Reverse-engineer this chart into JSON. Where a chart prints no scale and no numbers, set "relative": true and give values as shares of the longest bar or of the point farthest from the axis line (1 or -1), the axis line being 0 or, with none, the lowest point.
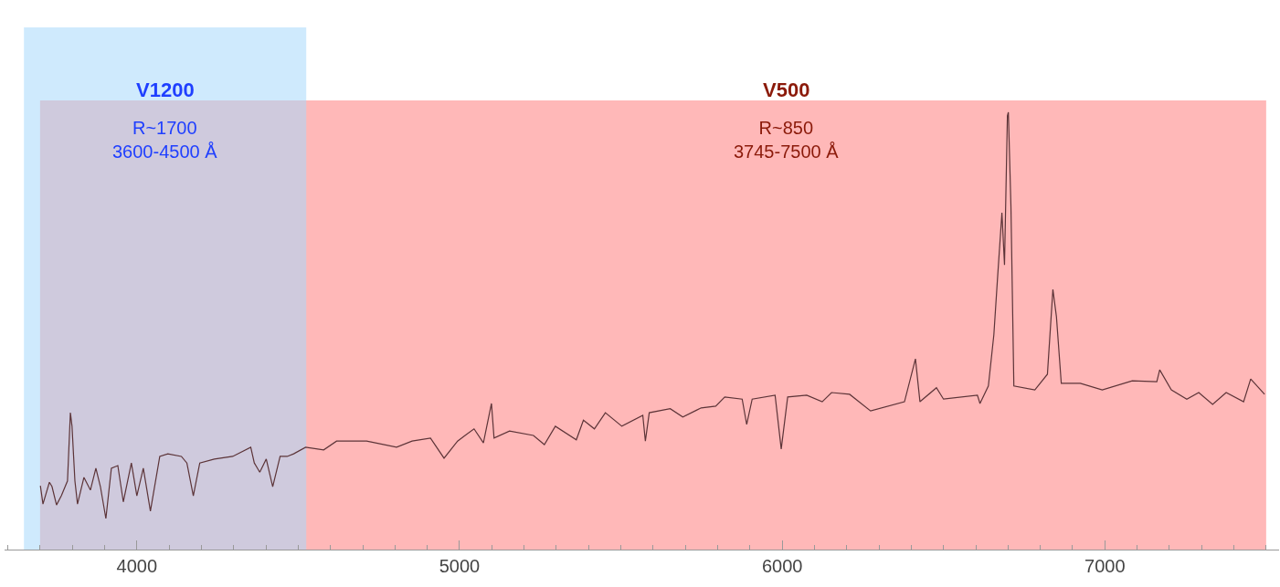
{
  "chart_data": {
    "type": "line",
    "relative": true,
    "x": [
      3701,
      3709,
      3729,
      3737,
      3751,
      3766,
      3785,
      3794,
      3799,
      3808,
      3816,
      3836,
      3856,
      3873,
      3887,
      3904,
      3921,
      3941,
      3958,
      3983,
      4000,
      4020,
      4042,
      4071,
      4096,
      4138,
      4155,
      4175,
      4195,
      4240,
      4297,
      4353,
      4364,
      4381,
      4401,
      4421,
      4444,
      4466,
      4486,
      4523,
      4579,
      4619,
      4712,
      4805,
      4853,
      4910,
      4952,
      4994,
      5045,
      5074,
      5099,
      5107,
      5155,
      5229,
      5263,
      5297,
      5362,
      5384,
      5418,
      5452,
      5503,
      5568,
      5576,
      5588,
      5653,
      5692,
      5749,
      5794,
      5822,
      5876,
      5890,
      5907,
      5978,
      5997,
      6017,
      6076,
      6124,
      6153,
      6209,
      6274,
      6379,
      6413,
      6427,
      6478,
      6500,
      6605,
      6613,
      6639,
      6656,
      6667,
      6681,
      6689,
      6698,
      6701,
      6709,
      6718,
      6783,
      6822,
      6839,
      6850,
      6865,
      6924,
      6992,
      7085,
      7161,
      7170,
      7206,
      7254,
      7291,
      7334,
      7376,
      7430,
      7452,
      7495
    ],
    "values": [
      0.146,
      0.104,
      0.154,
      0.144,
      0.102,
      0.123,
      0.157,
      0.313,
      0.282,
      0.157,
      0.104,
      0.165,
      0.136,
      0.186,
      0.144,
      0.071,
      0.186,
      0.192,
      0.109,
      0.198,
      0.123,
      0.186,
      0.088,
      0.213,
      0.219,
      0.213,
      0.198,
      0.123,
      0.198,
      0.207,
      0.213,
      0.234,
      0.198,
      0.177,
      0.207,
      0.144,
      0.213,
      0.213,
      0.219,
      0.234,
      0.228,
      0.248,
      0.248,
      0.234,
      0.248,
      0.255,
      0.209,
      0.248,
      0.276,
      0.244,
      0.334,
      0.255,
      0.271,
      0.261,
      0.24,
      0.282,
      0.251,
      0.296,
      0.276,
      0.313,
      0.282,
      0.307,
      0.248,
      0.313,
      0.322,
      0.303,
      0.324,
      0.328,
      0.349,
      0.344,
      0.286,
      0.344,
      0.353,
      0.23,
      0.349,
      0.353,
      0.338,
      0.359,
      0.355,
      0.317,
      0.338,
      0.436,
      0.338,
      0.37,
      0.344,
      0.353,
      0.334,
      0.374,
      0.491,
      0.616,
      0.77,
      0.651,
      0.992,
      1,
      0.783,
      0.374,
      0.365,
      0.401,
      0.595,
      0.532,
      0.38,
      0.38,
      0.365,
      0.386,
      0.384,
      0.411,
      0.365,
      0.344,
      0.359,
      0.332,
      0.359,
      0.338,
      0.39,
      0.355
    ],
    "color": "#5c3438",
    "xlim": [
      3590,
      7540
    ],
    "xticks": [
      4000,
      5000,
      6000,
      7000
    ],
    "bands": [
      {
        "axis": "x",
        "from": 3700,
        "to": 7500,
        "label": "V500",
        "color": "#ffb8b8"
      },
      {
        "axis": "x",
        "from": 3650,
        "to": 4525,
        "label": "V1200",
        "color": "#a8d8fb"
      }
    ],
    "annotations": [
      "R~850\n3745-7500 Å",
      "R~1700\n3600-4500 Å"
    ]
  }
}
